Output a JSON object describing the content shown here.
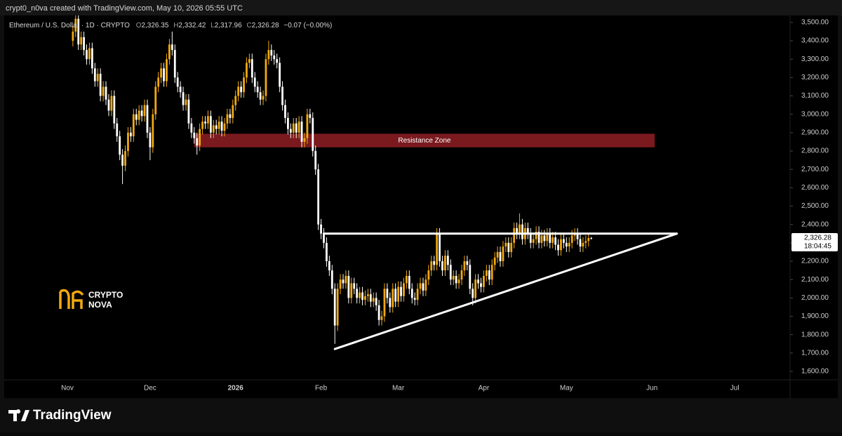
{
  "header": {
    "credit": "crypt0_n0va created with TradingView.com, May 10, 2026 05:55 UTC"
  },
  "footer": {
    "brand": "TradingView"
  },
  "watermark": {
    "lines": [
      "CRYPTO",
      "NOVA"
    ]
  },
  "chart_data": {
    "type": "candlestick",
    "legend": {
      "symbol": "Ethereum / U.S. Dollar · 1D · CRYPTO",
      "open_key": "O",
      "open": "2,326.35",
      "high_key": "H",
      "high": "2,332.42",
      "low_key": "L",
      "low": "2,317.96",
      "close_key": "C",
      "close": "2,326.28",
      "change": "−0.07 (−0.00%)"
    },
    "countdown": "18:04:45",
    "up_color": "#f2a90f",
    "down_color": "#ffffff",
    "grid": false,
    "ylim": [
      1558,
      3538
    ],
    "yticks": [
      {
        "value": 1600,
        "label": "1,600.00"
      },
      {
        "value": 1700,
        "label": "1,700.00"
      },
      {
        "value": 1800,
        "label": "1,800.00"
      },
      {
        "value": 1900,
        "label": "1,900.00"
      },
      {
        "value": 2000,
        "label": "2,000.00"
      },
      {
        "value": 2100,
        "label": "2,100.00"
      },
      {
        "value": 2200,
        "label": "2,200.00"
      },
      {
        "value": 2300,
        "label": "2,300.00"
      },
      {
        "value": 2400,
        "label": "2,400.00"
      },
      {
        "value": 2500,
        "label": "2,500.00"
      },
      {
        "value": 2600,
        "label": "2,600.00"
      },
      {
        "value": 2700,
        "label": "2,700.00"
      },
      {
        "value": 2800,
        "label": "2,800.00"
      },
      {
        "value": 2900,
        "label": "2,900.00"
      },
      {
        "value": 3000,
        "label": "3,000.00"
      },
      {
        "value": 3100,
        "label": "3,100.00"
      },
      {
        "value": 3200,
        "label": "3,200.00"
      },
      {
        "value": 3300,
        "label": "3,300.00"
      },
      {
        "value": 3400,
        "label": "3,400.00"
      },
      {
        "value": 3500,
        "label": "3,500.00"
      }
    ],
    "categories": [
      "Nov",
      null,
      null,
      null,
      null,
      null,
      null,
      null,
      null,
      null,
      null,
      null,
      null,
      null,
      null,
      null,
      null,
      null,
      null,
      null,
      null,
      null,
      null,
      null,
      null,
      null,
      null,
      null,
      null,
      null,
      "Dec",
      null,
      null,
      null,
      null,
      null,
      null,
      null,
      null,
      null,
      null,
      null,
      null,
      null,
      null,
      null,
      null,
      null,
      null,
      null,
      null,
      null,
      null,
      null,
      null,
      null,
      null,
      null,
      null,
      null,
      null,
      "2026",
      null,
      null,
      null,
      null,
      null,
      null,
      null,
      null,
      null,
      null,
      null,
      null,
      null,
      null,
      null,
      null,
      null,
      null,
      null,
      null,
      null,
      null,
      null,
      null,
      null,
      null,
      null,
      null,
      null,
      null,
      "Feb",
      null,
      null,
      null,
      null,
      null,
      null,
      null,
      null,
      null,
      null,
      null,
      null,
      null,
      null,
      null,
      null,
      null,
      null,
      null,
      null,
      null,
      null,
      null,
      null,
      null,
      null,
      null,
      "Mar",
      null,
      null,
      null,
      null,
      null,
      null,
      null,
      null,
      null,
      null,
      null,
      null,
      null,
      null,
      null,
      null,
      null,
      null,
      null,
      null,
      null,
      null,
      null,
      null,
      null,
      null,
      null,
      null,
      null,
      null,
      "Apr",
      null,
      null,
      null,
      null,
      null,
      null,
      null,
      null,
      null,
      null,
      null,
      null,
      null,
      null,
      null,
      null,
      null,
      null,
      null,
      null,
      null,
      null,
      null,
      null,
      null,
      null,
      null,
      null,
      null,
      "May",
      null,
      null,
      null,
      null,
      null,
      null,
      null,
      null,
      null,
      null,
      null,
      null,
      null,
      null,
      null,
      null,
      null,
      null,
      null,
      null,
      null,
      null,
      null,
      null,
      null,
      null,
      null,
      null,
      null,
      null,
      "Jun",
      null,
      null,
      null,
      null,
      null,
      null,
      null,
      null,
      null,
      null,
      null,
      null,
      null,
      null,
      null,
      null,
      null,
      null,
      null,
      null,
      null,
      null,
      null,
      null,
      null,
      null,
      null,
      null,
      null,
      "Jul"
    ],
    "open": [
      null,
      null,
      3400,
      3450,
      3520,
      3380,
      3420,
      3350,
      3300,
      3360,
      3250,
      3180,
      3220,
      3100,
      3150,
      3080,
      3020,
      3100,
      2950,
      2880,
      2780,
      2720,
      2800,
      2900,
      2880,
      3000,
      2970,
      3020,
      2990,
      3050,
      2900,
      2820,
      3000,
      3150,
      3200,
      3250,
      3180,
      3300,
      3380,
      3350,
      3200,
      3150,
      3120,
      3050,
      3080,
      2950,
      2900,
      2870,
      2830,
      2920,
      2960,
      2950,
      2990,
      2900,
      2940,
      2920,
      2960,
      2910,
      2950,
      3000,
      2980,
      3050,
      3100,
      3150,
      3120,
      3200,
      3280,
      3300,
      3200,
      3150,
      3120,
      3080,
      3100,
      3300,
      3350,
      3320,
      3300,
      3280,
      3150,
      3050,
      2980,
      2920,
      2900,
      2950,
      2900,
      2960,
      2850,
      2870,
      3000,
      2980,
      2800,
      2700,
      2400,
      2350,
      2300,
      2200,
      2150,
      2050,
      1850,
      2050,
      2100,
      2080,
      2120,
      2000,
      2080,
      2050,
      2000,
      2030,
      1990,
      2010,
      2020,
      1980,
      2000,
      1960,
      1880,
      1900,
      2050,
      2000,
      1950,
      2050,
      1980,
      2060,
      2010,
      2080,
      2120,
      2050,
      2000,
      1990,
      2050,
      2080,
      2040,
      2100,
      2150,
      2200,
      2180,
      2350,
      2200,
      2150,
      2230,
      2180,
      2100,
      2120,
      2080,
      2100,
      2150,
      2200,
      2180,
      2050,
      2000,
      2100,
      2080,
      2060,
      2120,
      2150,
      2100,
      2180,
      2220,
      2250,
      2200,
      2280,
      2300,
      2250,
      2300,
      2380,
      2350,
      2400,
      2320,
      2380,
      2350,
      2300,
      2320,
      2360,
      2300,
      2340,
      2310,
      2350,
      2300,
      2330,
      2290,
      2260,
      2320,
      2300,
      2280,
      2300,
      2340,
      2350,
      2320,
      2280,
      2300,
      2310,
      2326.35,
      null,
      null,
      null,
      null,
      null,
      null,
      null,
      null,
      null,
      null,
      null,
      null,
      null,
      null,
      null,
      null,
      null,
      null,
      null,
      null,
      null,
      null,
      null,
      null,
      null,
      null,
      null,
      null,
      null,
      null,
      null,
      null,
      null,
      null,
      null,
      null,
      null,
      null,
      null,
      null,
      null,
      null,
      null,
      null,
      null,
      null,
      null,
      null,
      null,
      null,
      null,
      null
    ],
    "high": [
      null,
      null,
      3480,
      3550,
      3550,
      3450,
      3450,
      3380,
      3390,
      3390,
      3280,
      3250,
      3250,
      3180,
      3180,
      3110,
      3130,
      3130,
      2980,
      2910,
      2810,
      2830,
      2930,
      2930,
      3030,
      3030,
      3050,
      3050,
      3080,
      3080,
      2930,
      3030,
      3180,
      3230,
      3280,
      3280,
      3330,
      3410,
      3450,
      3380,
      3230,
      3180,
      3150,
      3110,
      3110,
      2980,
      2930,
      2900,
      2950,
      2990,
      2990,
      3020,
      3020,
      2970,
      2970,
      2990,
      2990,
      2980,
      3030,
      3030,
      3080,
      3130,
      3180,
      3180,
      3230,
      3310,
      3330,
      3330,
      3230,
      3180,
      3150,
      3130,
      3330,
      3400,
      3380,
      3350,
      3330,
      3310,
      3180,
      3080,
      3010,
      2950,
      2980,
      2980,
      2990,
      2990,
      2900,
      3030,
      3030,
      3010,
      2830,
      2730,
      2430,
      2380,
      2330,
      2230,
      2180,
      2080,
      2080,
      2130,
      2130,
      2150,
      2150,
      2110,
      2110,
      2080,
      2060,
      2060,
      2040,
      2050,
      2050,
      2030,
      2030,
      1990,
      1930,
      2080,
      2080,
      2030,
      2080,
      2080,
      2090,
      2090,
      2110,
      2150,
      2150,
      2080,
      2030,
      2080,
      2110,
      2110,
      2130,
      2180,
      2230,
      2230,
      2380,
      2380,
      2230,
      2260,
      2260,
      2210,
      2150,
      2150,
      2130,
      2180,
      2230,
      2230,
      2210,
      2080,
      2130,
      2130,
      2110,
      2150,
      2180,
      2180,
      2210,
      2250,
      2280,
      2280,
      2310,
      2330,
      2330,
      2330,
      2410,
      2410,
      2460,
      2430,
      2410,
      2410,
      2380,
      2350,
      2390,
      2390,
      2370,
      2370,
      2380,
      2380,
      2360,
      2360,
      2320,
      2350,
      2350,
      2330,
      2330,
      2370,
      2380,
      2380,
      2350,
      2330,
      2340,
      2350,
      2332.42,
      null,
      null,
      null,
      null,
      null,
      null,
      null,
      null,
      null,
      null,
      null,
      null,
      null,
      null,
      null,
      null,
      null,
      null,
      null,
      null,
      null,
      null,
      null,
      null,
      null,
      null,
      null,
      null,
      null,
      null,
      null,
      null,
      null,
      null,
      null,
      null,
      null,
      null,
      null,
      null,
      null,
      null,
      null,
      null,
      null,
      null,
      null,
      null,
      null,
      null,
      null,
      null
    ],
    "low": [
      null,
      null,
      3370,
      3420,
      3350,
      3350,
      3320,
      3270,
      3270,
      3220,
      3150,
      3150,
      3070,
      3070,
      3050,
      2990,
      2990,
      2920,
      2850,
      2750,
      2620,
      2690,
      2770,
      2850,
      2850,
      2940,
      2940,
      2960,
      2960,
      2870,
      2750,
      2790,
      2970,
      3120,
      3170,
      3150,
      3150,
      3270,
      3320,
      3170,
      3120,
      3090,
      3020,
      3020,
      2920,
      2870,
      2840,
      2780,
      2800,
      2890,
      2920,
      2920,
      2870,
      2870,
      2890,
      2890,
      2880,
      2880,
      2920,
      2950,
      2950,
      3020,
      3070,
      3090,
      3090,
      3170,
      3250,
      3170,
      3120,
      3090,
      3050,
      3050,
      3070,
      3270,
      3290,
      3270,
      3250,
      3120,
      3020,
      2950,
      2890,
      2870,
      2870,
      2870,
      2870,
      2820,
      2820,
      2840,
      2950,
      2770,
      2670,
      2370,
      2320,
      2270,
      2170,
      2120,
      2020,
      1750,
      1820,
      2020,
      2050,
      2050,
      1970,
      1970,
      2020,
      1970,
      1970,
      1960,
      1960,
      1980,
      1950,
      1950,
      1930,
      1850,
      1850,
      1870,
      1970,
      1920,
      1920,
      1950,
      1950,
      1980,
      1980,
      2050,
      2020,
      1970,
      1960,
      1960,
      2020,
      2010,
      2010,
      2070,
      2120,
      2150,
      2150,
      2170,
      2120,
      2120,
      2150,
      2070,
      2070,
      2050,
      2050,
      2070,
      2120,
      2150,
      2020,
      1960,
      1970,
      2050,
      2030,
      2030,
      2090,
      2070,
      2070,
      2150,
      2190,
      2170,
      2170,
      2250,
      2220,
      2220,
      2270,
      2320,
      2320,
      2290,
      2290,
      2320,
      2270,
      2270,
      2290,
      2270,
      2270,
      2280,
      2280,
      2270,
      2270,
      2260,
      2230,
      2230,
      2270,
      2250,
      2250,
      2270,
      2310,
      2290,
      2250,
      2250,
      2270,
      2280,
      2317.96,
      null,
      null,
      null,
      null,
      null,
      null,
      null,
      null,
      null,
      null,
      null,
      null,
      null,
      null,
      null,
      null,
      null,
      null,
      null,
      null,
      null,
      null,
      null,
      null,
      null,
      null,
      null,
      null,
      null,
      null,
      null,
      null,
      null,
      null,
      null,
      null,
      null,
      null,
      null,
      null,
      null,
      null,
      null,
      null,
      null,
      null,
      null,
      null,
      null,
      null,
      null,
      null
    ],
    "close": [
      null,
      null,
      3450,
      3520,
      3380,
      3420,
      3350,
      3300,
      3360,
      3250,
      3180,
      3220,
      3100,
      3150,
      3080,
      3020,
      3100,
      2950,
      2880,
      2780,
      2720,
      2800,
      2900,
      2880,
      3000,
      2970,
      3020,
      2990,
      3050,
      2900,
      2820,
      3000,
      3150,
      3200,
      3250,
      3180,
      3300,
      3380,
      3350,
      3200,
      3150,
      3120,
      3050,
      3080,
      2950,
      2900,
      2870,
      2830,
      2920,
      2960,
      2950,
      2990,
      2900,
      2940,
      2920,
      2960,
      2910,
      2950,
      3000,
      2980,
      3050,
      3100,
      3150,
      3120,
      3200,
      3280,
      3300,
      3200,
      3150,
      3120,
      3080,
      3100,
      3300,
      3350,
      3320,
      3300,
      3280,
      3150,
      3050,
      2980,
      2920,
      2900,
      2950,
      2900,
      2960,
      2850,
      2870,
      3000,
      2980,
      2800,
      2700,
      2400,
      2350,
      2300,
      2200,
      2150,
      2050,
      1850,
      2050,
      2100,
      2080,
      2120,
      2000,
      2080,
      2050,
      2000,
      2030,
      1990,
      2010,
      2020,
      1980,
      2000,
      1960,
      1880,
      1900,
      2050,
      2000,
      1950,
      2050,
      1980,
      2060,
      2010,
      2080,
      2120,
      2050,
      2000,
      1990,
      2050,
      2080,
      2040,
      2100,
      2150,
      2200,
      2180,
      2350,
      2200,
      2150,
      2230,
      2180,
      2100,
      2120,
      2080,
      2100,
      2150,
      2200,
      2180,
      2050,
      2000,
      2100,
      2080,
      2060,
      2120,
      2150,
      2100,
      2180,
      2220,
      2250,
      2200,
      2280,
      2300,
      2250,
      2300,
      2380,
      2350,
      2400,
      2320,
      2380,
      2350,
      2300,
      2320,
      2360,
      2300,
      2340,
      2310,
      2350,
      2300,
      2330,
      2290,
      2260,
      2320,
      2300,
      2280,
      2300,
      2340,
      2350,
      2320,
      2280,
      2300,
      2310,
      2326.35,
      2326.28,
      null,
      null,
      null,
      null,
      null,
      null,
      null,
      null,
      null,
      null,
      null,
      null,
      null,
      null,
      null,
      null,
      null,
      null,
      null,
      null,
      null,
      null,
      null,
      null,
      null,
      null,
      null,
      null,
      null,
      null,
      null,
      null,
      null,
      null,
      null,
      null,
      null,
      null,
      null,
      null,
      null,
      null,
      null,
      null,
      null,
      null,
      null,
      null,
      null,
      null,
      null,
      null
    ],
    "zones": [
      {
        "label": "Resistance Zone",
        "x": [
          46,
          213
        ],
        "y": [
          2820,
          2894
        ],
        "color": "#7a1a1f"
      }
    ],
    "lines": [
      {
        "x": [
          93,
          221
        ],
        "y": [
          2350,
          2350
        ],
        "color": "#ffffff"
      },
      {
        "x": [
          97,
          221
        ],
        "y": [
          1722,
          2350
        ],
        "color": "#ffffff"
      }
    ]
  }
}
